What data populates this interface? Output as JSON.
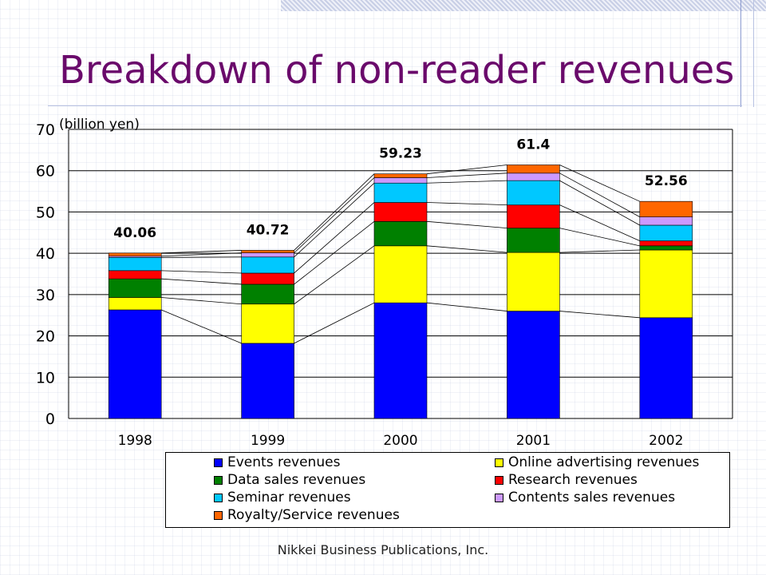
{
  "slide": {
    "title": "Breakdown of non-reader revenues",
    "footer": "Nikkei Business Publications, Inc."
  },
  "chart_data": {
    "type": "bar",
    "stacked": true,
    "unit_label": "(billion yen)",
    "categories": [
      "1998",
      "1999",
      "2000",
      "2001",
      "2002"
    ],
    "ylim": [
      0,
      70
    ],
    "yticks": [
      0,
      10,
      20,
      30,
      40,
      50,
      60,
      70
    ],
    "grid": true,
    "totals": [
      "40.06",
      "40.72",
      "59.23",
      "61.4",
      "52.56"
    ],
    "series": [
      {
        "name": "Events revenues",
        "color": "#0000ff",
        "values": [
          26.3,
          18.2,
          28.0,
          26.0,
          24.4
        ]
      },
      {
        "name": "Online advertising revenues",
        "color": "#ffff00",
        "values": [
          3.0,
          9.5,
          13.8,
          14.2,
          16.4
        ]
      },
      {
        "name": "Data sales revenues",
        "color": "#008000",
        "values": [
          4.5,
          4.8,
          5.9,
          5.9,
          1.0
        ]
      },
      {
        "name": "Research revenues",
        "color": "#ff0000",
        "values": [
          2.0,
          2.7,
          4.6,
          5.6,
          1.2
        ]
      },
      {
        "name": "Seminar revenues",
        "color": "#00c8ff",
        "values": [
          3.2,
          3.9,
          4.7,
          5.9,
          3.8
        ]
      },
      {
        "name": "Contents sales revenues",
        "color": "#cc99ff",
        "values": [
          0.3,
          1.0,
          1.3,
          1.8,
          2.0
        ]
      },
      {
        "name": "Royalty/Service revenues",
        "color": "#ff6600",
        "values": [
          0.76,
          0.62,
          0.93,
          2.0,
          3.76
        ]
      }
    ]
  }
}
